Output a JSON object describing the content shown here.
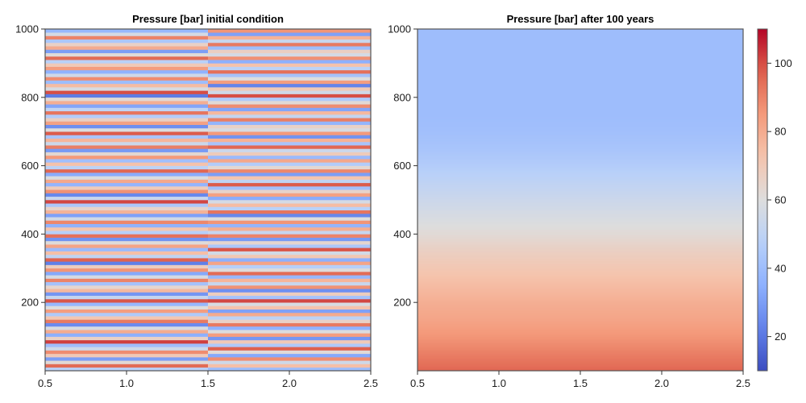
{
  "chart_data": [
    {
      "type": "heatmap",
      "title": "Pressure [bar] initial condition",
      "xlabel": "",
      "ylabel": "",
      "xlim": [
        0.5,
        2.5
      ],
      "ylim": [
        0,
        1000
      ],
      "xticks": [
        "0.5",
        "1.0",
        "1.5",
        "2.0",
        "2.5"
      ],
      "yticks": [
        "200",
        "400",
        "600",
        "800",
        "1000"
      ],
      "columns": [
        {
          "x": 1,
          "layer_values": [
            48,
            95,
            62,
            30,
            70,
            88,
            55,
            40,
            102,
            66,
            35,
            80,
            58,
            25,
            92,
            71,
            45,
            84,
            60,
            38,
            99,
            52,
            28,
            76,
            64,
            42,
            90,
            57,
            33,
            86,
            68,
            22,
            97,
            50,
            74,
            39,
            82,
            61,
            27,
            94,
            47,
            72,
            36,
            89,
            56,
            31,
            78,
            65,
            44,
            101,
            53,
            24,
            87,
            69,
            37,
            81,
            59,
            34,
            96,
            49,
            73,
            41,
            85,
            63,
            29,
            91,
            54,
            77,
            43,
            98,
            60,
            26,
            83,
            67,
            46,
            93,
            51,
            32,
            79,
            62,
            21,
            100,
            58,
            75,
            40,
            88,
            55,
            36,
            84,
            70,
            48,
            95,
            61,
            30,
            80,
            66,
            44,
            90,
            57,
            38
          ],
          "layer_values_note": ""
        },
        {
          "x": 2,
          "layer_values": [
            40,
            74,
            55,
            88,
            33,
            62,
            97,
            45,
            70,
            28,
            84,
            59,
            36,
            92,
            66,
            49,
            80,
            31,
            73,
            58,
            101,
            42,
            68,
            26,
            87,
            53,
            77,
            38,
            95,
            61,
            47,
            82,
            35,
            71,
            56,
            99,
            44,
            64,
            29,
            90,
            52,
            79,
            37,
            86,
            60,
            24,
            93,
            48,
            75,
            57,
            34,
            83,
            65,
            41,
            98,
            50,
            72,
            30,
            89,
            63,
            46,
            81,
            39,
            69,
            54,
            96,
            43,
            78,
            27,
            85,
            58,
            66,
            37,
            91,
            51,
            76,
            32,
            88,
            62,
            45,
            100,
            55,
            70,
            23,
            84,
            60,
            42,
            94,
            49,
            73,
            35,
            87,
            57,
            67,
            40,
            92,
            53,
            78,
            31,
            86
          ],
          "layer_values_note": ""
        }
      ],
      "colormap": "coolwarm"
    },
    {
      "type": "heatmap",
      "title": "Pressure [bar] after 100 years",
      "xlabel": "",
      "ylabel": "",
      "xlim": [
        0.5,
        2.5
      ],
      "ylim": [
        0,
        1000
      ],
      "xticks": [
        "0.5",
        "1.0",
        "1.5",
        "2.0",
        "2.5"
      ],
      "yticks": [
        "200",
        "400",
        "600",
        "800",
        "1000"
      ],
      "depth_profile": {
        "y": [
          0,
          50,
          100,
          150,
          200,
          250,
          300,
          350,
          400,
          450,
          500,
          550,
          600,
          650,
          700,
          750,
          800,
          850,
          900,
          950,
          1000
        ],
        "values": [
          96,
          91,
          86,
          82,
          79,
          75,
          71,
          67,
          62,
          58,
          54,
          50,
          46,
          43,
          41,
          40,
          40,
          40,
          40,
          40,
          40
        ]
      },
      "colormap": "coolwarm"
    }
  ],
  "colorbar": {
    "range": [
      10,
      110
    ],
    "ticks": [
      "20",
      "40",
      "60",
      "80",
      "100"
    ],
    "colors": {
      "low": "#3b4cc0",
      "mid": "#dddddd",
      "high": "#b40426"
    }
  }
}
